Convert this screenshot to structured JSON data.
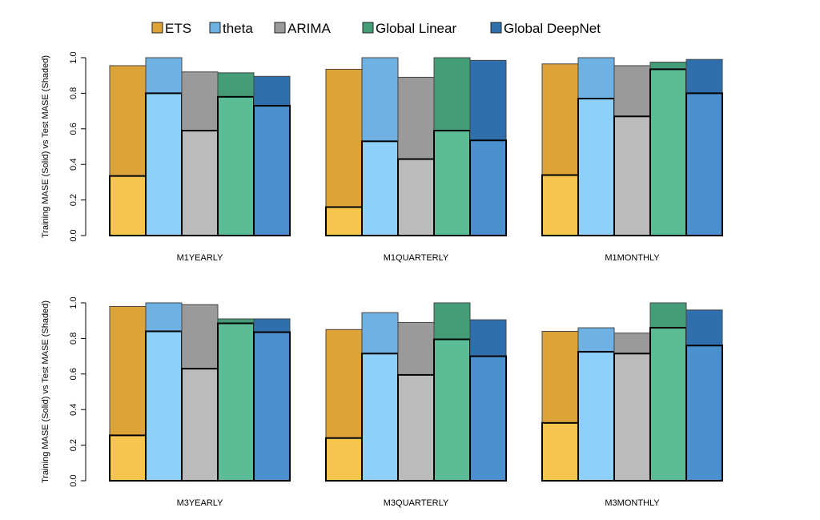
{
  "chart_data": [
    {
      "type": "bar",
      "title": "M1YEARLY",
      "ylabel": "Training MASE (Solid) vs Test MASE (Shaded)",
      "ylim": [
        0,
        1
      ],
      "yticks": [
        "0.0",
        "0.2",
        "0.4",
        "0.6",
        "0.8",
        "1.0"
      ],
      "categories": [
        "ETS",
        "theta",
        "ARIMA",
        "Global Linear",
        "Global DeepNet"
      ],
      "series": [
        {
          "name": "Test MASE (Shaded)",
          "values": [
            0.955,
            1.0,
            0.92,
            0.915,
            0.895
          ]
        },
        {
          "name": "Training MASE (Solid)",
          "values": [
            0.335,
            0.8,
            0.59,
            0.78,
            0.73
          ]
        }
      ]
    },
    {
      "type": "bar",
      "title": "M1QUARTERLY",
      "ylim": [
        0,
        1
      ],
      "categories": [
        "ETS",
        "theta",
        "ARIMA",
        "Global Linear",
        "Global DeepNet"
      ],
      "series": [
        {
          "name": "Test MASE (Shaded)",
          "values": [
            0.935,
            1.0,
            0.89,
            1.0,
            0.985
          ]
        },
        {
          "name": "Training MASE (Solid)",
          "values": [
            0.16,
            0.53,
            0.43,
            0.59,
            0.535
          ]
        }
      ]
    },
    {
      "type": "bar",
      "title": "M1MONTHLY",
      "ylim": [
        0,
        1
      ],
      "categories": [
        "ETS",
        "theta",
        "ARIMA",
        "Global Linear",
        "Global DeepNet"
      ],
      "series": [
        {
          "name": "Test MASE (Shaded)",
          "values": [
            0.965,
            1.0,
            0.955,
            0.975,
            0.99
          ]
        },
        {
          "name": "Training MASE (Solid)",
          "values": [
            0.34,
            0.77,
            0.67,
            0.935,
            0.8
          ]
        }
      ]
    },
    {
      "type": "bar",
      "title": "M3YEARLY",
      "ylabel": "Training MASE (Solid) vs Test MASE (Shaded)",
      "ylim": [
        0,
        1
      ],
      "yticks": [
        "0.0",
        "0.2",
        "0.4",
        "0.6",
        "0.8",
        "1.0"
      ],
      "categories": [
        "ETS",
        "theta",
        "ARIMA",
        "Global Linear",
        "Global DeepNet"
      ],
      "series": [
        {
          "name": "Test MASE (Shaded)",
          "values": [
            0.98,
            1.0,
            0.99,
            0.91,
            0.91
          ]
        },
        {
          "name": "Training MASE (Solid)",
          "values": [
            0.255,
            0.84,
            0.63,
            0.885,
            0.835
          ]
        }
      ]
    },
    {
      "type": "bar",
      "title": "M3QUARTERLY",
      "ylim": [
        0,
        1
      ],
      "categories": [
        "ETS",
        "theta",
        "ARIMA",
        "Global Linear",
        "Global DeepNet"
      ],
      "series": [
        {
          "name": "Test MASE (Shaded)",
          "values": [
            0.85,
            0.945,
            0.89,
            1.0,
            0.905
          ]
        },
        {
          "name": "Training MASE (Solid)",
          "values": [
            0.24,
            0.715,
            0.595,
            0.795,
            0.7
          ]
        }
      ]
    },
    {
      "type": "bar",
      "title": "M3MONTHLY",
      "ylim": [
        0,
        1
      ],
      "categories": [
        "ETS",
        "theta",
        "ARIMA",
        "Global Linear",
        "Global DeepNet"
      ],
      "series": [
        {
          "name": "Test MASE (Shaded)",
          "values": [
            0.84,
            0.86,
            0.83,
            1.0,
            0.96
          ]
        },
        {
          "name": "Training MASE (Solid)",
          "values": [
            0.325,
            0.725,
            0.715,
            0.86,
            0.76
          ]
        }
      ]
    }
  ],
  "legend": {
    "placement": "top",
    "entries": [
      "ETS",
      "theta",
      "ARIMA",
      "Global Linear",
      "Global DeepNet"
    ]
  },
  "colors": {
    "shaded": [
      "#DDA238",
      "#6EB1E2",
      "#9A9A9A",
      "#459D78",
      "#2F6FAE"
    ],
    "solid": [
      "#F5C54E",
      "#8DD1FB",
      "#BBBBBB",
      "#5BBC96",
      "#4A90CF"
    ]
  }
}
